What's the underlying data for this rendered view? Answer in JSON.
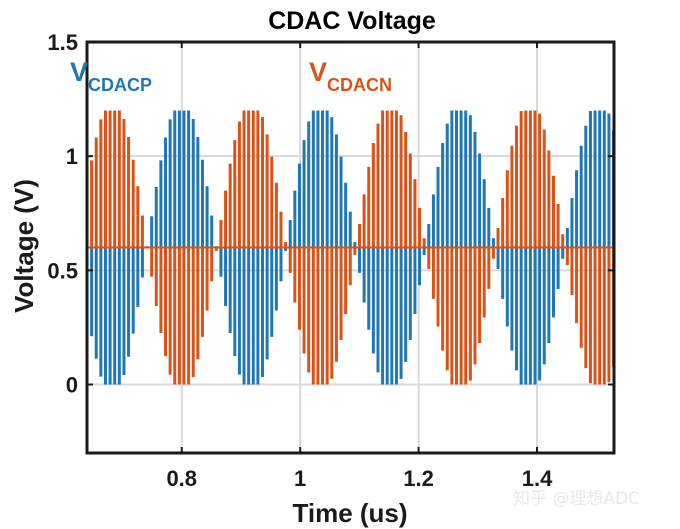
{
  "chart_data": {
    "type": "line",
    "title": "CDAC Voltage",
    "xlabel": "Time (us)",
    "ylabel": "Voltage (V)",
    "xlim": [
      0.64,
      1.53
    ],
    "ylim": [
      -0.3,
      1.5
    ],
    "grid": true,
    "x_ticks": [
      0.8,
      1.0,
      1.2,
      1.4
    ],
    "x_tick_labels": [
      "0.8",
      "1",
      "1.2",
      "1.4"
    ],
    "y_ticks": [
      0,
      0.5,
      1,
      1.5
    ],
    "y_tick_labels": [
      "0",
      "0.5",
      "1",
      "1.5"
    ],
    "common_mode_V": 0.6,
    "amplitude_V": 0.6,
    "envelope_period_us": 0.235,
    "sample_period_us": 0.0078,
    "series": [
      {
        "name": "VCDACP",
        "label_main": "V",
        "label_sub": "CDACP",
        "color": "#1f77b4",
        "envelope_peaks_us": [
          0.8,
          1.035,
          1.27,
          1.505
        ]
      },
      {
        "name": "VCDACN",
        "label_main": "V",
        "label_sub": "CDACN",
        "color": "#d95319",
        "envelope_peaks_us": [
          0.683,
          0.918,
          1.153,
          1.388
        ]
      }
    ]
  },
  "watermark": "知乎 @理想ADC"
}
